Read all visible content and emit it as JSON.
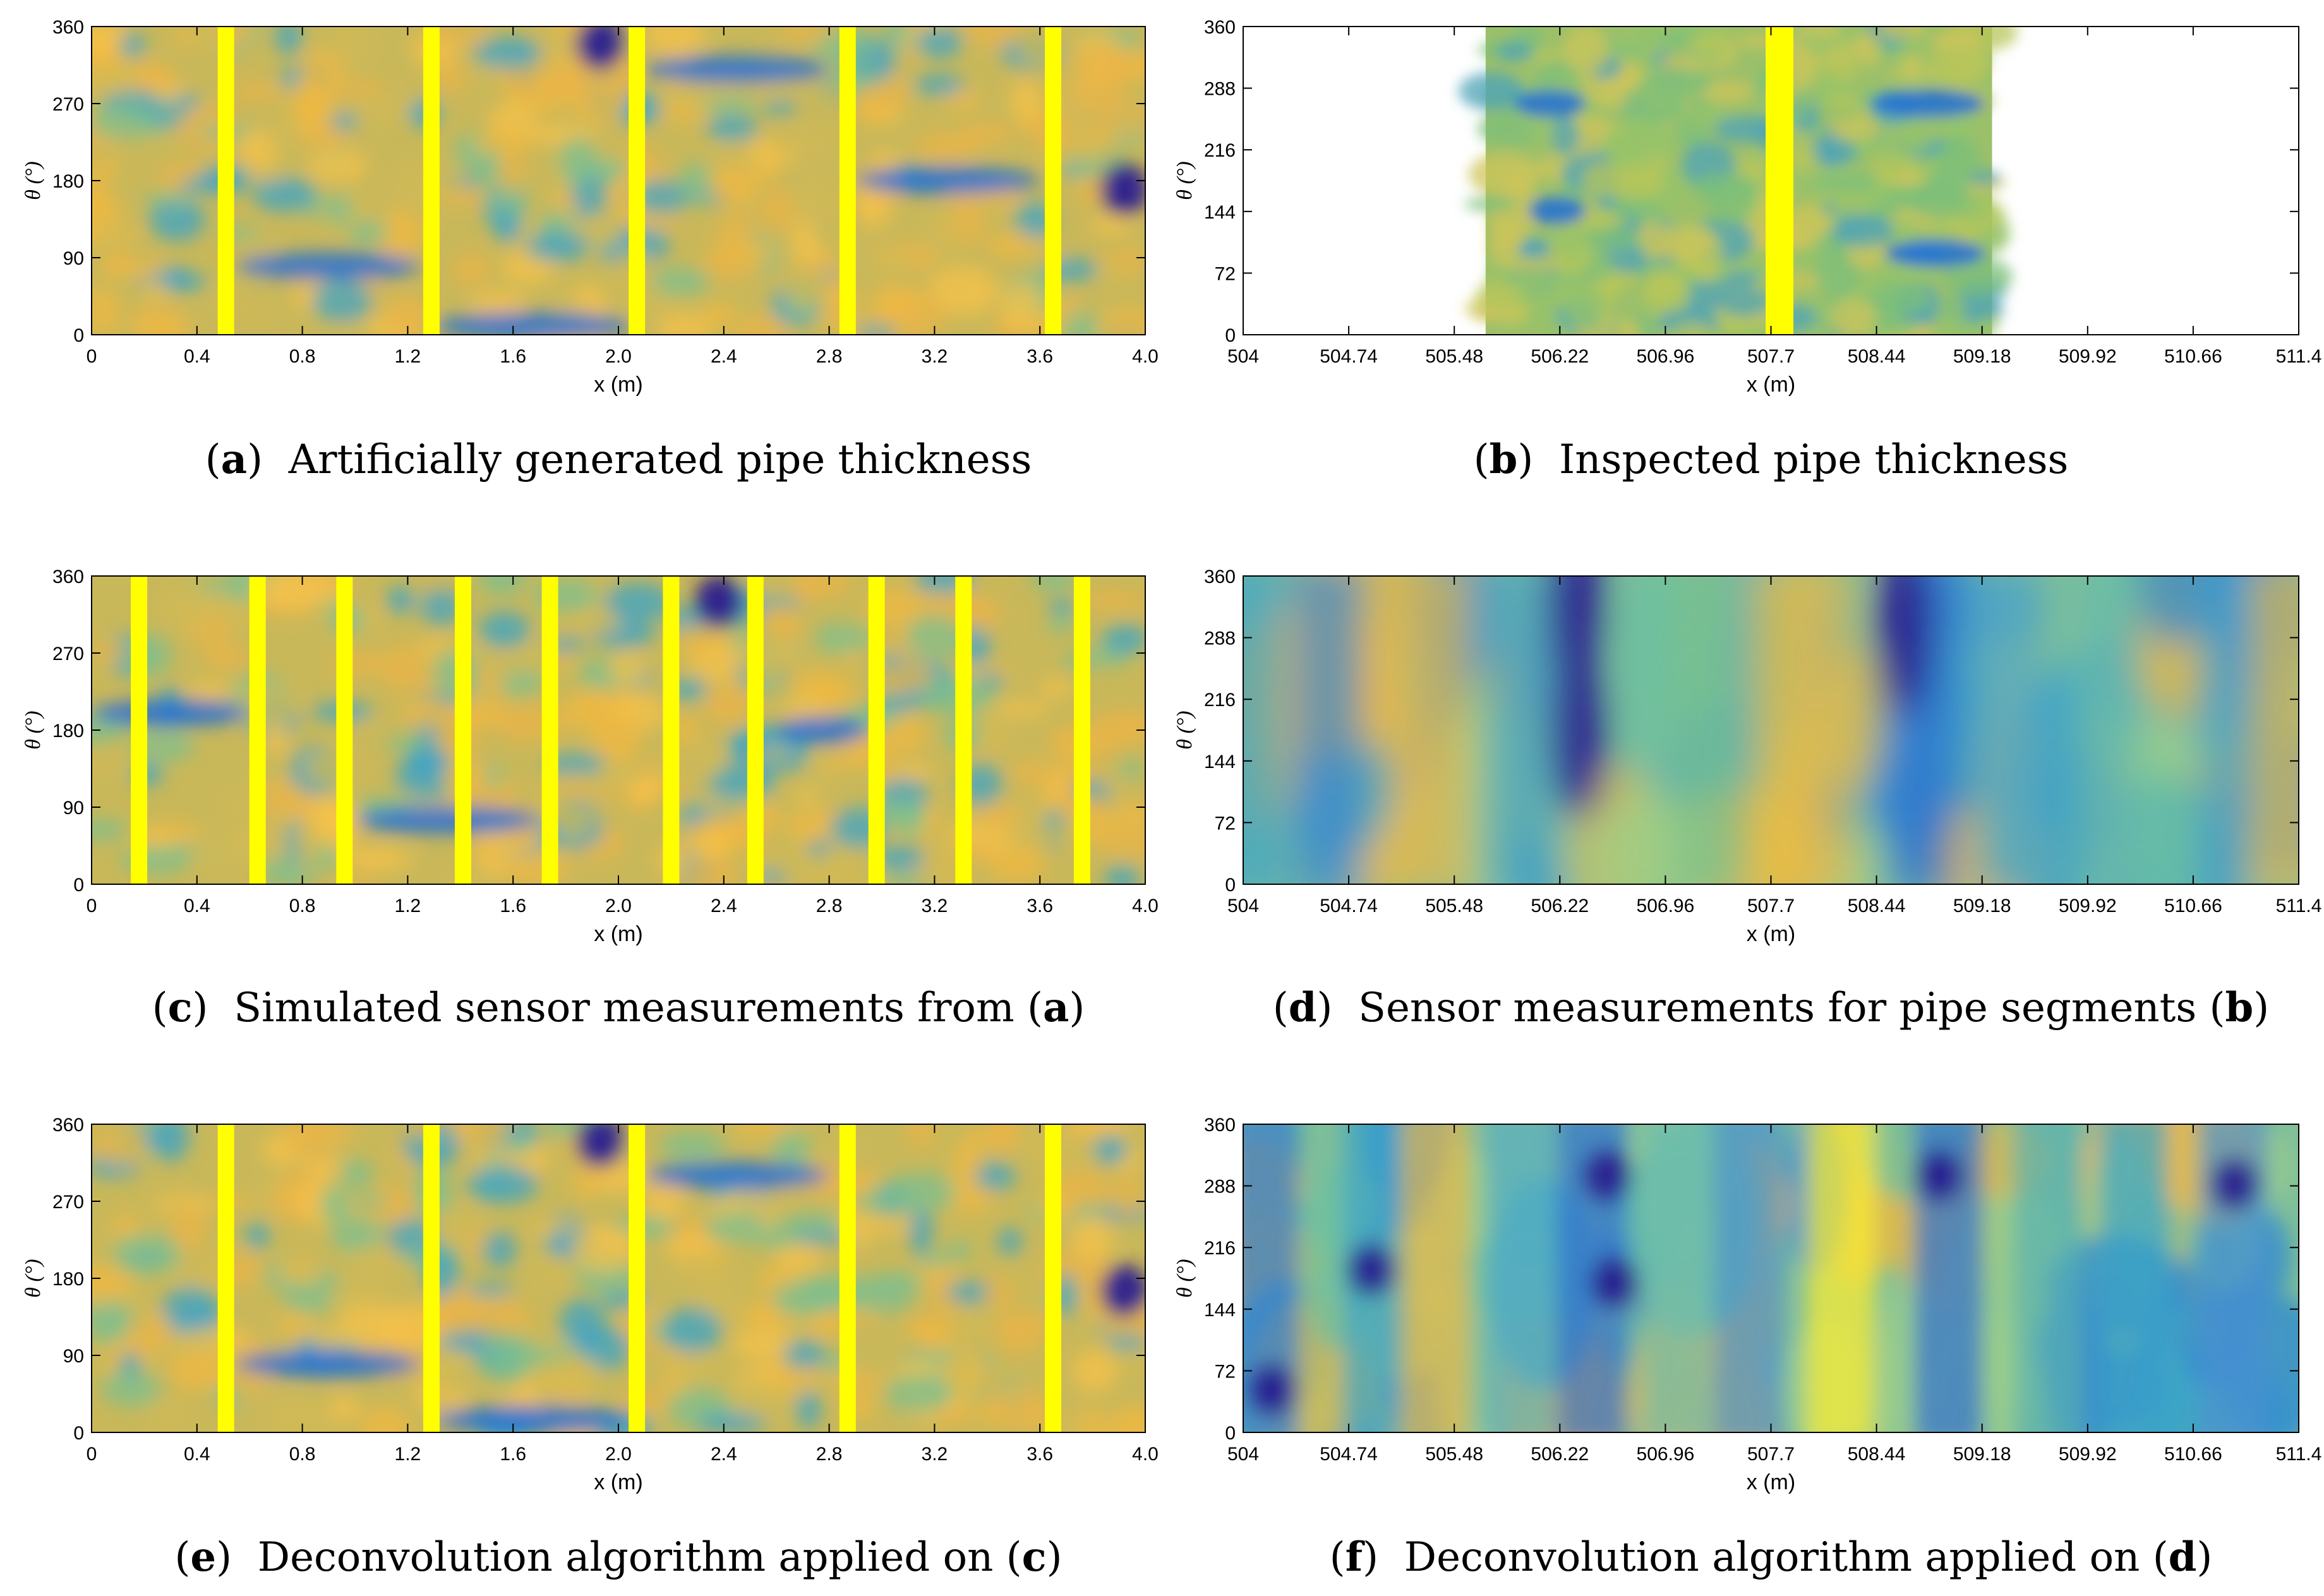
{
  "colors": {
    "deep_blue": "#2a1f8f",
    "blue": "#1f6fd6",
    "cyan": "#3aa3c8",
    "teal": "#7bbf90",
    "orange": "#f0b840",
    "yellow": "#ffff00",
    "axis": "#000000"
  },
  "captions": {
    "a": {
      "letter": "a",
      "text": "Artificially generated pipe thickness"
    },
    "b": {
      "letter": "b",
      "text": "Inspected pipe thickness"
    },
    "c": {
      "letter": "c",
      "text": "Simulated sensor measurements from (",
      "ref": "a",
      "close": ")"
    },
    "d": {
      "letter": "d",
      "text": "Sensor measurements for pipe segments (",
      "ref": "b",
      "close": ")"
    },
    "e": {
      "letter": "e",
      "text": "Deconvolution algorithm applied on (",
      "ref": "c",
      "close": ")"
    },
    "f": {
      "letter": "f",
      "text": "Deconvolution algorithm applied on (",
      "ref": "d",
      "close": ")"
    }
  },
  "chart_data": [
    {
      "id": "a",
      "type": "heatmap",
      "xlabel": "x (m)",
      "ylabel": "θ (°)",
      "xlim": [
        0,
        4.0
      ],
      "ylim": [
        0,
        360
      ],
      "xticks": [
        0,
        0.4,
        0.8,
        1.2,
        1.6,
        2.0,
        2.4,
        2.8,
        3.2,
        3.6,
        4.0
      ],
      "xtick_labels": [
        "0",
        "0.4",
        "0.8",
        "1.2",
        "1.6",
        "2.0",
        "2.4",
        "2.8",
        "3.2",
        "3.6",
        "4.0"
      ],
      "yticks": [
        0,
        90,
        180,
        270,
        360
      ],
      "data_extent": [
        0,
        4.0
      ],
      "weld_bands_x": [
        0.51,
        1.29,
        2.07,
        2.87,
        3.65
      ],
      "deep_blobs": [
        {
          "x": 1.93,
          "theta": 340
        },
        {
          "x": 3.92,
          "theta": 170
        }
      ],
      "blue_streaks": [
        {
          "x0": 0.55,
          "x1": 1.25,
          "theta": 80
        },
        {
          "x0": 2.1,
          "x1": 2.8,
          "theta": 310
        },
        {
          "x0": 2.9,
          "x1": 3.6,
          "theta": 180
        },
        {
          "x0": 1.3,
          "x1": 2.05,
          "theta": 10
        }
      ]
    },
    {
      "id": "b",
      "type": "heatmap",
      "xlabel": "x (m)",
      "ylabel": "θ (°)",
      "xlim": [
        504,
        511.4
      ],
      "ylim": [
        0,
        360
      ],
      "xticks": [
        504,
        504.74,
        505.48,
        506.22,
        506.96,
        507.7,
        508.44,
        509.18,
        509.92,
        510.66,
        511.4
      ],
      "xtick_labels": [
        "504",
        "504.74",
        "505.48",
        "506.22",
        "506.96",
        "507.7",
        "508.44",
        "509.18",
        "509.92",
        "510.66",
        "511.4"
      ],
      "yticks": [
        0,
        72,
        144,
        216,
        288,
        360
      ],
      "data_extent": [
        505.7,
        509.25
      ],
      "weld_bands_x": [
        507.76
      ],
      "deep_blobs": [],
      "blue_streaks": [
        {
          "x0": 505.9,
          "x1": 506.4,
          "theta": 270
        },
        {
          "x0": 506.0,
          "x1": 506.4,
          "theta": 145
        },
        {
          "x0": 508.4,
          "x1": 509.2,
          "theta": 270
        },
        {
          "x0": 508.5,
          "x1": 509.2,
          "theta": 95
        }
      ]
    },
    {
      "id": "c",
      "type": "heatmap",
      "xlabel": "x (m)",
      "ylabel": "θ (°)",
      "xlim": [
        0,
        4.0
      ],
      "ylim": [
        0,
        360
      ],
      "xticks": [
        0,
        0.4,
        0.8,
        1.2,
        1.6,
        2.0,
        2.4,
        2.8,
        3.2,
        3.6,
        4.0
      ],
      "xtick_labels": [
        "0",
        "0.4",
        "0.8",
        "1.2",
        "1.6",
        "2.0",
        "2.4",
        "2.8",
        "3.2",
        "3.6",
        "4.0"
      ],
      "yticks": [
        0,
        90,
        180,
        270,
        360
      ],
      "data_extent": [
        0,
        4.0
      ],
      "weld_bands_x": [
        0.18,
        0.63,
        0.96,
        1.41,
        1.74,
        2.2,
        2.52,
        2.98,
        3.31,
        3.76
      ],
      "deep_blobs": [
        {
          "x": 2.38,
          "theta": 330
        }
      ],
      "blue_streaks": [
        {
          "x0": 1.0,
          "x1": 1.7,
          "theta": 75
        },
        {
          "x0": 2.6,
          "x1": 2.95,
          "theta": 180
        },
        {
          "x0": 0.0,
          "x1": 0.6,
          "theta": 200
        }
      ]
    },
    {
      "id": "d",
      "type": "heatmap",
      "xlabel": "x (m)",
      "ylabel": "θ (°)",
      "xlim": [
        504,
        511.4
      ],
      "ylim": [
        0,
        360
      ],
      "xticks": [
        504,
        504.74,
        505.48,
        506.22,
        506.96,
        507.7,
        508.44,
        509.18,
        509.92,
        510.66,
        511.4
      ],
      "xtick_labels": [
        "504",
        "504.74",
        "505.48",
        "506.22",
        "506.96",
        "507.7",
        "508.44",
        "509.18",
        "509.92",
        "510.66",
        "511.4"
      ],
      "yticks": [
        0,
        72,
        144,
        216,
        288,
        360
      ],
      "data_extent": [
        504,
        511.4
      ],
      "weld_bands_x": [],
      "deep_blobs": [
        {
          "x": 506.36,
          "theta": 180
        },
        {
          "x": 506.34,
          "theta": 320
        },
        {
          "x": 508.63,
          "theta": 300
        }
      ],
      "blue_streaks": []
    },
    {
      "id": "e",
      "type": "heatmap",
      "xlabel": "x (m)",
      "ylabel": "θ (°)",
      "xlim": [
        0,
        4.0
      ],
      "ylim": [
        0,
        360
      ],
      "xticks": [
        0,
        0.4,
        0.8,
        1.2,
        1.6,
        2.0,
        2.4,
        2.8,
        3.2,
        3.6,
        4.0
      ],
      "xtick_labels": [
        "0",
        "0.4",
        "0.8",
        "1.2",
        "1.6",
        "2.0",
        "2.4",
        "2.8",
        "3.2",
        "3.6",
        "4.0"
      ],
      "yticks": [
        0,
        90,
        180,
        270,
        360
      ],
      "data_extent": [
        0,
        4.0
      ],
      "weld_bands_x": [
        0.51,
        1.29,
        2.07,
        2.87,
        3.65
      ],
      "deep_blobs": [
        {
          "x": 1.93,
          "theta": 340
        },
        {
          "x": 3.92,
          "theta": 165
        }
      ],
      "blue_streaks": [
        {
          "x0": 0.55,
          "x1": 1.25,
          "theta": 80
        },
        {
          "x0": 2.1,
          "x1": 2.8,
          "theta": 300
        },
        {
          "x0": 1.3,
          "x1": 2.05,
          "theta": 15
        }
      ]
    },
    {
      "id": "f",
      "type": "heatmap",
      "xlabel": "x (m)",
      "ylabel": "θ (°)",
      "xlim": [
        504,
        511.4
      ],
      "ylim": [
        0,
        360
      ],
      "xticks": [
        504,
        504.74,
        505.48,
        506.22,
        506.96,
        507.7,
        508.44,
        509.18,
        509.92,
        510.66,
        511.4
      ],
      "xtick_labels": [
        "504",
        "504.74",
        "505.48",
        "506.22",
        "506.96",
        "507.7",
        "508.44",
        "509.18",
        "509.92",
        "510.66",
        "511.4"
      ],
      "yticks": [
        0,
        72,
        144,
        216,
        288,
        360
      ],
      "data_extent": [
        504,
        511.4
      ],
      "weld_bands_x": [],
      "deep_blobs": [
        {
          "x": 504.2,
          "theta": 50
        },
        {
          "x": 504.9,
          "theta": 190
        },
        {
          "x": 506.6,
          "theta": 175
        },
        {
          "x": 506.55,
          "theta": 300
        },
        {
          "x": 508.88,
          "theta": 300
        },
        {
          "x": 510.95,
          "theta": 290
        }
      ],
      "blue_streaks": []
    }
  ]
}
